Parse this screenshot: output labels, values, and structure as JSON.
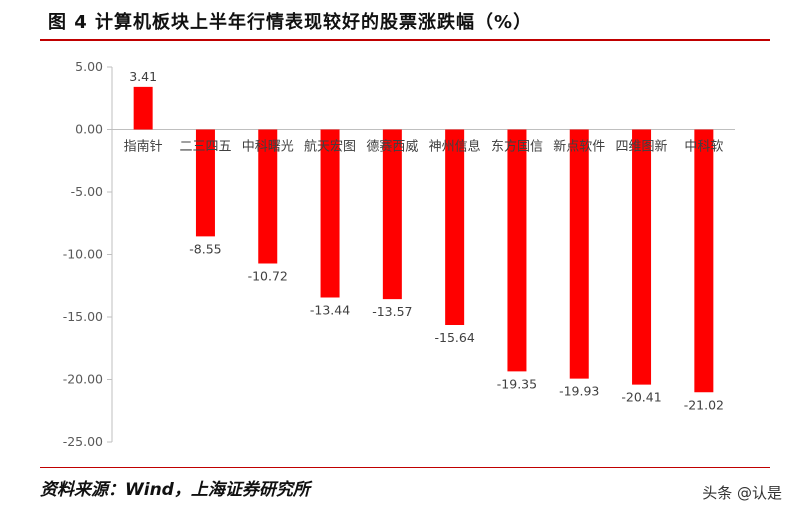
{
  "figure": {
    "title": "图 4 计算机板块上半年行情表现较好的股票涨跌幅（%）",
    "source": "资料来源：Wind，上海证券研究所",
    "watermark": "头条 @认是"
  },
  "colors": {
    "bar": "#ff0000",
    "rule": "#c00000",
    "axis": "#bfbfbf",
    "text": "#404040"
  },
  "chart_data": {
    "type": "bar",
    "categories": [
      "指南针",
      "二三四五",
      "中科曙光",
      "航天宏图",
      "德赛西威",
      "神州信息",
      "东方国信",
      "新点软件",
      "四维图新",
      "中科软"
    ],
    "values": [
      3.41,
      -8.55,
      -10.72,
      -13.44,
      -13.57,
      -15.64,
      -19.35,
      -19.93,
      -20.41,
      -21.02
    ],
    "value_labels": [
      "3.41",
      "-8.55",
      "-10.72",
      "-13.44",
      "-13.57",
      "-15.64",
      "-19.35",
      "-19.93",
      "-20.41",
      "-21.02"
    ],
    "yticks": [
      "5.00",
      "0.00",
      "-5.00",
      "-10.00",
      "-15.00",
      "-20.00",
      "-25.00"
    ],
    "ylim": [
      -25,
      5
    ],
    "title": "",
    "xlabel": "",
    "ylabel": "",
    "grid": false,
    "legend": "none"
  }
}
